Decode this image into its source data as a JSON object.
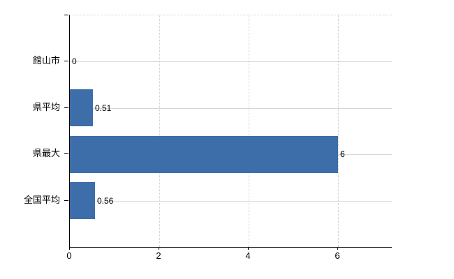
{
  "chart_data": {
    "type": "bar",
    "orientation": "horizontal",
    "title": "",
    "xlabel": "",
    "ylabel": "",
    "categories": [
      "館山市",
      "県平均",
      "県最大",
      "全国平均"
    ],
    "values": [
      0,
      0.51,
      6,
      0.56
    ],
    "value_labels": [
      "0",
      "0.51",
      "6",
      "0.56"
    ],
    "xticks": [
      0,
      2,
      4,
      6
    ],
    "xtick_labels": [
      "0",
      "2",
      "4",
      "6"
    ],
    "xlim": [
      0,
      7.2
    ],
    "grid": true,
    "legend": false,
    "colors": {
      "bar": "#3e6ea9",
      "grid": "#d6d6d6",
      "axis": "#000000",
      "text": "#000000",
      "background": "#ffffff"
    }
  }
}
